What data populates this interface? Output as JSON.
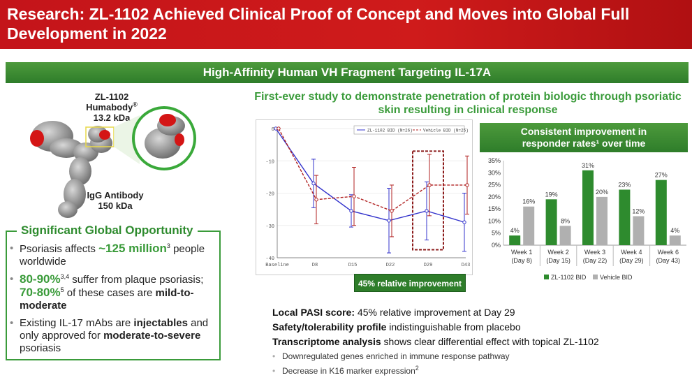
{
  "header": {
    "title": "Research: ZL-1102 Achieved Clinical Proof of Concept and Moves into Global Full Development in 2022"
  },
  "banner": {
    "text": "High-Affinity Human VH Fragment Targeting IL-17A"
  },
  "molecule": {
    "humabody_name": "ZL-1102 Humabody",
    "humabody_reg": "®",
    "humabody_size": "13.2 kDa",
    "igg_name": "IgG Antibody",
    "igg_size": "150 kDa"
  },
  "opportunity": {
    "title": "Significant Global Opportunity",
    "b1_pre": "Psoriasis affects ",
    "b1_hl": "~125 million",
    "b1_sup": "3",
    "b1_post": " people worldwide",
    "b2_hl1": "80-90%",
    "b2_sup1": "3,4",
    "b2_mid": " suffer from plaque psoriasis; ",
    "b2_hl2": "70-80%",
    "b2_sup2": "5",
    "b2_mid2": " of these cases are ",
    "b2_bold": "mild-to-moderate",
    "b3_pre": "Existing IL-17 mAbs are ",
    "b3_bold1": "injectables",
    "b3_mid": " and only approved for ",
    "b3_bold2": "moderate-to-severe",
    "b3_post": " psoriasis"
  },
  "study": {
    "title": "First-ever study to demonstrate penetration of protein biologic through psoriatic skin resulting in clinical response"
  },
  "callout": {
    "text": "45% relative improvement"
  },
  "responder": {
    "title_line1": "Consistent improvement in",
    "title_line2": "responder rates¹ over time"
  },
  "chart_data": [
    {
      "type": "line",
      "x": [
        "Baseline",
        "D8",
        "D15",
        "D22",
        "D29",
        "D43"
      ],
      "ylim": [
        -40,
        0
      ],
      "yticks": [
        0,
        -10,
        -20,
        -30,
        -40
      ],
      "series": [
        {
          "name": "ZL-1102 BID (N=26)",
          "values": [
            0,
            -17,
            -25.5,
            -28.5,
            -25.5,
            -29
          ],
          "error": [
            0,
            7.5,
            5,
            10,
            9,
            9
          ],
          "color": "#3333cc"
        },
        {
          "name": "Vehicle BID (N=25)",
          "values": [
            0,
            -22,
            -21,
            -25.5,
            -17.5,
            -17.5
          ],
          "error": [
            0,
            7.5,
            9,
            8,
            9.5,
            9
          ],
          "color": "#b02020"
        }
      ]
    },
    {
      "type": "bar",
      "categories": [
        "Week 1",
        "Week 2",
        "Week 3",
        "Week 4",
        "Week 6"
      ],
      "sublabels": [
        "(Day 8)",
        "(Day 15)",
        "(Day 22)",
        "(Day 29)",
        "(Day 43)"
      ],
      "ylim": [
        0,
        35
      ],
      "yticks": [
        "0%",
        "5%",
        "10%",
        "15%",
        "20%",
        "25%",
        "30%",
        "35%"
      ],
      "series": [
        {
          "name": "ZL-1102 BID",
          "values": [
            4,
            19,
            31,
            23,
            27
          ],
          "labels": [
            "4%",
            "19%",
            "31%",
            "23%",
            "27%"
          ],
          "color": "#2e8b2e"
        },
        {
          "name": "Vehicle BID",
          "values": [
            16,
            8,
            20,
            12,
            4
          ],
          "labels": [
            "16%",
            "8%",
            "20%",
            "12%",
            "4%"
          ],
          "color": "#b0b0b0"
        }
      ]
    }
  ],
  "results": {
    "r1_bold": "Local PASI score:",
    "r1_text": " 45% relative improvement at Day 29",
    "r2_bold": "Safety/tolerability profile",
    "r2_text": " indistinguishable from placebo",
    "r3_bold": "Transcriptome analysis",
    "r3_text": " shows clear differential effect with topical ZL-1102",
    "s1": "Downregulated genes enriched in immune response pathway",
    "s2": "Decrease in K16 marker expression",
    "s2_sup": "2"
  }
}
